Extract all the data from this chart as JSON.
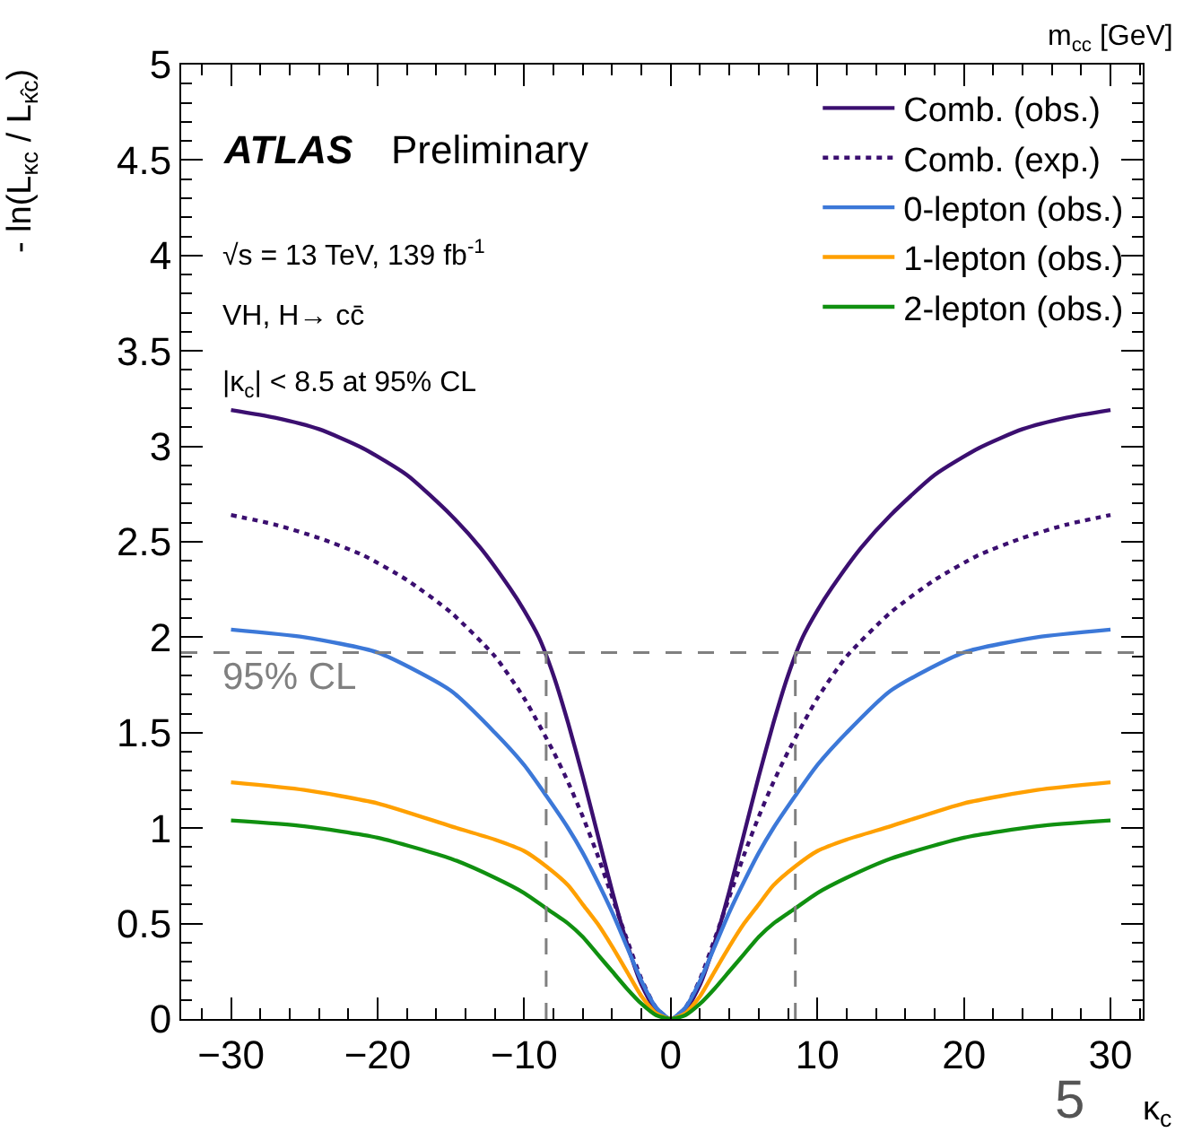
{
  "chart_data": {
    "type": "line",
    "xlabel": "κ$_{c}$",
    "ylabel": "- ln(L$_{κc}$ / L$_{κ̂c}$)",
    "xlim": [
      -33.4,
      32.2
    ],
    "ylim": [
      0,
      5
    ],
    "xticks": [
      {
        "value": -30,
        "label": "−30"
      },
      {
        "value": -20,
        "label": "−20"
      },
      {
        "value": -10,
        "label": "−10"
      },
      0,
      10,
      20,
      30
    ],
    "yticks": [
      0,
      0.5,
      1,
      1.5,
      2,
      2.5,
      3,
      3.5,
      4,
      4.5,
      5
    ],
    "grid": false,
    "legend": "top right",
    "marker": "none",
    "series": [
      {
        "name": "Comb. (obs.)",
        "color": "#3b0f70",
        "line_style": "solid",
        "x": [
          -30,
          -27,
          -24,
          -21,
          -18,
          -15,
          -13,
          -11,
          -10,
          -9,
          -8,
          -7,
          -6,
          -5,
          -4,
          -3,
          -2,
          -1,
          0,
          1,
          2,
          3,
          4,
          5,
          6,
          7,
          8,
          9,
          10,
          11,
          13,
          15,
          18,
          21,
          24,
          27,
          30
        ],
        "values": [
          3.19,
          3.15,
          3.09,
          2.99,
          2.85,
          2.64,
          2.47,
          2.26,
          2.14,
          2.0,
          1.8,
          1.55,
          1.27,
          0.97,
          0.67,
          0.4,
          0.18,
          0.045,
          0,
          0.045,
          0.18,
          0.4,
          0.67,
          0.97,
          1.27,
          1.55,
          1.8,
          2.0,
          2.14,
          2.26,
          2.47,
          2.64,
          2.85,
          2.99,
          3.09,
          3.15,
          3.19
        ]
      },
      {
        "name": "Comb. (exp.)",
        "color": "#3b0f70",
        "line_style": "dotted",
        "x": [
          -30,
          -27,
          -24,
          -21,
          -18,
          -15,
          -12,
          -10,
          -8,
          -7,
          -6,
          -5,
          -4,
          -3,
          -2,
          -1,
          0,
          1,
          2,
          3,
          4,
          5,
          6,
          7,
          8,
          10,
          12,
          15,
          18,
          21,
          24,
          27,
          30
        ],
        "values": [
          2.64,
          2.59,
          2.52,
          2.43,
          2.3,
          2.13,
          1.9,
          1.68,
          1.4,
          1.24,
          1.06,
          0.86,
          0.64,
          0.42,
          0.21,
          0.06,
          0,
          0.06,
          0.21,
          0.42,
          0.64,
          0.86,
          1.06,
          1.24,
          1.4,
          1.68,
          1.9,
          2.13,
          2.3,
          2.43,
          2.52,
          2.59,
          2.64
        ]
      },
      {
        "name": "0-lepton (obs.)",
        "color": "#3c78d8",
        "line_style": "solid",
        "x": [
          -30,
          -25,
          -20,
          -15,
          -12,
          -10,
          -8.5,
          -7,
          -6,
          -5,
          -4,
          -3,
          -2,
          -1,
          0,
          1,
          2,
          3,
          4,
          5,
          6,
          7,
          8.5,
          10,
          12,
          15,
          20,
          25,
          30
        ],
        "values": [
          2.04,
          2.0,
          1.92,
          1.72,
          1.5,
          1.33,
          1.17,
          1.0,
          0.87,
          0.72,
          0.56,
          0.38,
          0.2,
          0.06,
          0,
          0.06,
          0.2,
          0.38,
          0.56,
          0.72,
          0.87,
          1.0,
          1.17,
          1.33,
          1.5,
          1.72,
          1.92,
          2.0,
          2.04
        ]
      },
      {
        "name": "1-lepton (obs.)",
        "color": "#ffa000",
        "line_style": "solid",
        "x": [
          -30,
          -25,
          -20,
          -15,
          -12,
          -10,
          -8.5,
          -7,
          -6,
          -5,
          -4,
          -3,
          -2,
          -1,
          0,
          1,
          2,
          3,
          4,
          5,
          6,
          7,
          8.5,
          10,
          12,
          15,
          20,
          25,
          30
        ],
        "values": [
          1.24,
          1.2,
          1.13,
          1.01,
          0.94,
          0.88,
          0.8,
          0.7,
          0.6,
          0.5,
          0.38,
          0.25,
          0.12,
          0.03,
          0,
          0.03,
          0.12,
          0.25,
          0.38,
          0.5,
          0.6,
          0.7,
          0.8,
          0.88,
          0.94,
          1.01,
          1.13,
          1.2,
          1.24
        ]
      },
      {
        "name": "2-lepton (obs.)",
        "color": "#109010",
        "line_style": "solid",
        "x": [
          -30,
          -25,
          -20,
          -15,
          -12,
          -10,
          -8.5,
          -7,
          -6,
          -5,
          -4,
          -3,
          -2,
          -1,
          0,
          1,
          2,
          3,
          4,
          5,
          6,
          7,
          8.5,
          10,
          12,
          15,
          20,
          25,
          30
        ],
        "values": [
          1.04,
          1.01,
          0.95,
          0.84,
          0.74,
          0.66,
          0.58,
          0.5,
          0.43,
          0.34,
          0.25,
          0.16,
          0.08,
          0.02,
          0,
          0.02,
          0.08,
          0.16,
          0.25,
          0.34,
          0.43,
          0.5,
          0.58,
          0.66,
          0.74,
          0.84,
          0.95,
          1.01,
          1.04
        ]
      }
    ],
    "ref_lines": [
      {
        "axis": "y",
        "value": 1.92,
        "label": "95% CL",
        "color": "#808080",
        "line_style": "dashed"
      },
      {
        "axis": "x",
        "value": -8.5,
        "color": "#808080",
        "line_style": "dashed"
      },
      {
        "axis": "x",
        "value": 8.5,
        "color": "#808080",
        "line_style": "dashed"
      }
    ],
    "annotations": [
      "ATLAS",
      "Preliminary",
      "√s = 13 TeV, 139 fb$^{-1}$",
      "VH, H→ cc̄",
      "|κ$_{c}$| < 8.5 at 95% CL",
      "m$_{cc}$ [GeV]",
      "5"
    ]
  }
}
